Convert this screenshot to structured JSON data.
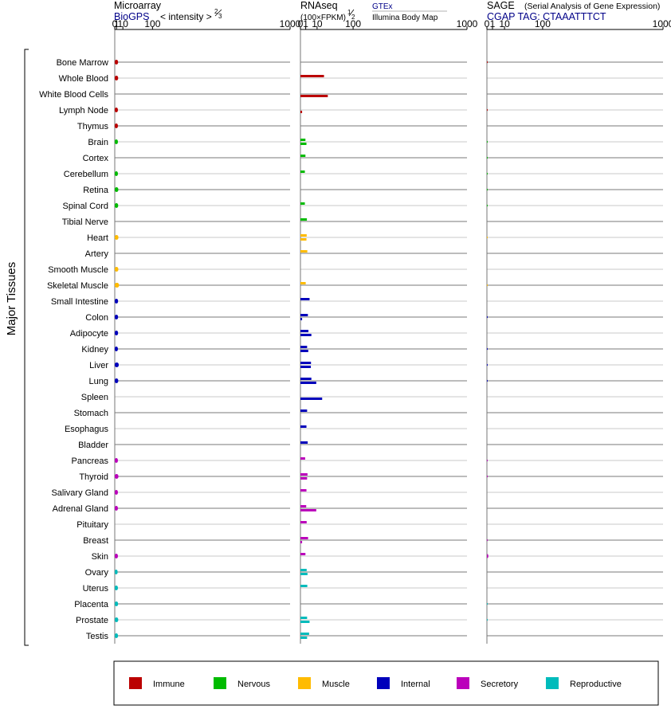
{
  "chart_data": {
    "type": "bar",
    "ylabel": "Major Tissues",
    "tissues": [
      {
        "name": "Bone Marrow",
        "group": "Immune"
      },
      {
        "name": "Whole Blood",
        "group": "Immune"
      },
      {
        "name": "White Blood Cells",
        "group": "Immune"
      },
      {
        "name": "Lymph Node",
        "group": "Immune"
      },
      {
        "name": "Thymus",
        "group": "Immune"
      },
      {
        "name": "Brain",
        "group": "Nervous"
      },
      {
        "name": "Cortex",
        "group": "Nervous"
      },
      {
        "name": "Cerebellum",
        "group": "Nervous"
      },
      {
        "name": "Retina",
        "group": "Nervous"
      },
      {
        "name": "Spinal Cord",
        "group": "Nervous"
      },
      {
        "name": "Tibial Nerve",
        "group": "Nervous"
      },
      {
        "name": "Heart",
        "group": "Muscle"
      },
      {
        "name": "Artery",
        "group": "Muscle"
      },
      {
        "name": "Smooth Muscle",
        "group": "Muscle"
      },
      {
        "name": "Skeletal Muscle",
        "group": "Muscle"
      },
      {
        "name": "Small Intestine",
        "group": "Internal"
      },
      {
        "name": "Colon",
        "group": "Internal"
      },
      {
        "name": "Adipocyte",
        "group": "Internal"
      },
      {
        "name": "Kidney",
        "group": "Internal"
      },
      {
        "name": "Liver",
        "group": "Internal"
      },
      {
        "name": "Lung",
        "group": "Internal"
      },
      {
        "name": "Spleen",
        "group": "Internal"
      },
      {
        "name": "Stomach",
        "group": "Internal"
      },
      {
        "name": "Esophagus",
        "group": "Internal"
      },
      {
        "name": "Bladder",
        "group": "Internal"
      },
      {
        "name": "Pancreas",
        "group": "Secretory"
      },
      {
        "name": "Thyroid",
        "group": "Secretory"
      },
      {
        "name": "Salivary Gland",
        "group": "Secretory"
      },
      {
        "name": "Adrenal Gland",
        "group": "Secretory"
      },
      {
        "name": "Pituitary",
        "group": "Secretory"
      },
      {
        "name": "Breast",
        "group": "Secretory"
      },
      {
        "name": "Skin",
        "group": "Secretory"
      },
      {
        "name": "Ovary",
        "group": "Reproductive"
      },
      {
        "name": "Uterus",
        "group": "Reproductive"
      },
      {
        "name": "Placenta",
        "group": "Reproductive"
      },
      {
        "name": "Prostate",
        "group": "Reproductive"
      },
      {
        "name": "Testis",
        "group": "Reproductive"
      }
    ],
    "groups": [
      {
        "name": "Immune",
        "color": "#bb0000"
      },
      {
        "name": "Nervous",
        "color": "#00bb00"
      },
      {
        "name": "Muscle",
        "color": "#ffbb00"
      },
      {
        "name": "Internal",
        "color": "#0000bb"
      },
      {
        "name": "Secretory",
        "color": "#bb00bb"
      },
      {
        "name": "Reproductive",
        "color": "#00bbbb"
      }
    ],
    "legend_position": "bottom",
    "panels": [
      {
        "id": "microarray",
        "title": "Microarray",
        "subtitle": "BioGPS",
        "scale_label": "< intensity >",
        "scale_exp_num": "2",
        "scale_exp_den": "3",
        "exponent": 0.667,
        "ticks": [
          "0",
          "1",
          "10",
          "100",
          "1000"
        ],
        "tick_values": [
          0,
          1,
          10,
          100,
          1000
        ],
        "xlim": [
          0,
          1000
        ],
        "values": [
          2.6,
          2.7,
          null,
          2.4,
          2.4,
          2.4,
          null,
          2.4,
          2.9,
          2.7,
          null,
          3.0,
          null,
          2.9,
          3.8,
          2.6,
          2.6,
          2.6,
          2.4,
          3.4,
          2.8,
          null,
          null,
          null,
          null,
          2.4,
          3.0,
          2.4,
          2.4,
          null,
          null,
          2.4,
          2.1,
          2.4,
          2.6,
          2.8,
          2.5
        ]
      },
      {
        "id": "rnaseq",
        "title": "RNAseq",
        "subtitle": "(100×FPKM)",
        "scale_exp_num": "1",
        "scale_exp_den": "2",
        "exponent": 0.5,
        "source_a": "GTEx",
        "source_b": "Illumina Body Map",
        "ticks": [
          "0",
          "1",
          "10",
          "100",
          "1000"
        ],
        "tick_values": [
          0,
          1,
          10,
          100,
          1000
        ],
        "xlim": [
          0,
          1000
        ],
        "gtex": [
          null,
          20,
          null,
          null,
          null,
          0.9,
          0.9,
          0.7,
          null,
          0.7,
          1.5,
          1.4,
          1.7,
          null,
          1.0,
          3.0,
          2.0,
          2.3,
          1.6,
          4.0,
          4.3,
          null,
          1.6,
          1.3,
          1.9,
          0.8,
          1.8,
          1.3,
          1.2,
          1.4,
          2.1,
          0.9,
          1.4,
          1.7,
          null,
          1.6,
          2.7
        ],
        "ibm": [
          null,
          null,
          27,
          0.1,
          null,
          1.3,
          null,
          null,
          null,
          null,
          null,
          1.3,
          null,
          null,
          null,
          null,
          0.1,
          4.3,
          2.2,
          3.9,
          9.0,
          17,
          null,
          null,
          null,
          null,
          1.6,
          null,
          9.0,
          null,
          0.1,
          null,
          1.8,
          null,
          null,
          3.0,
          1.6
        ]
      },
      {
        "id": "sage",
        "title": "SAGE",
        "title_note": "(Serial Analysis of Gene Expression)",
        "subtitle": "CGAP TAG: CTAAATTTCT",
        "ticks": [
          "0",
          "1",
          "10",
          "100",
          "1000"
        ],
        "tick_values": [
          0,
          1,
          10,
          100,
          1000
        ],
        "xlim": [
          0,
          1000
        ],
        "values": [
          0.02,
          null,
          null,
          0.02,
          null,
          0.01,
          0.01,
          0.01,
          0.01,
          0.01,
          null,
          0.005,
          null,
          null,
          0.005,
          null,
          0.02,
          null,
          0.02,
          0.02,
          0.02,
          null,
          null,
          null,
          null,
          0.02,
          0.02,
          null,
          null,
          null,
          0.02,
          0.06,
          null,
          null,
          0.01,
          0.01,
          null
        ]
      }
    ]
  }
}
